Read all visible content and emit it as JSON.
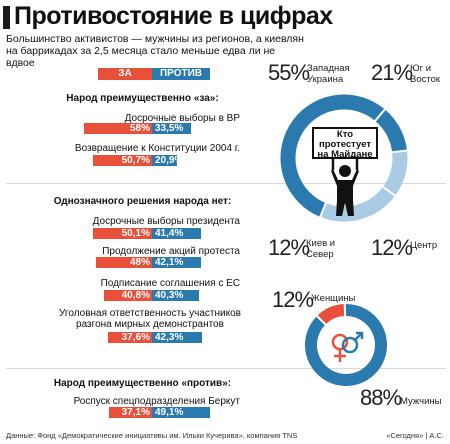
{
  "header": {
    "title": "Противостояние в цифрах",
    "subtitle": "Большинство активистов — мужчины из регионов, а киевлян на баррикадах за 2,5 месяца стало меньше едва ли не вдвое"
  },
  "legend": {
    "za": "ЗА",
    "protiv": "ПРОТИВ"
  },
  "colors": {
    "za": "#e8503a",
    "protiv": "#2a7ab0",
    "donut_dark": "#2a7ab0",
    "donut_light": "#a9cbe3",
    "women": "#e8503a",
    "men": "#2a7ab0"
  },
  "sections": [
    {
      "title": "Народ преимущественно «за»:"
    },
    {
      "title": "Однозначного решения народа нет:"
    },
    {
      "title": "Народ преимущественно «против»:"
    }
  ],
  "chart_data": [
    {
      "type": "bar",
      "series": [
        {
          "name": "ЗА"
        },
        {
          "name": "ПРОТИВ"
        }
      ],
      "rows": [
        {
          "label": "Досрочные выборы в ВР",
          "za": 58,
          "za_label": "58%",
          "protiv": 33.5,
          "protiv_label": "33,5%"
        },
        {
          "label": "Возвращение к Конституции 2004 г.",
          "za": 50.7,
          "za_label": "50,7%",
          "protiv": 20.9,
          "protiv_label": "20,9%"
        },
        {
          "label": "Досрочные выборы президента",
          "za": 50.1,
          "za_label": "50,1%",
          "protiv": 41.4,
          "protiv_label": "41,4%"
        },
        {
          "label": "Продолжение акций протеста",
          "za": 48,
          "za_label": "48%",
          "protiv": 42.1,
          "protiv_label": "42,1%"
        },
        {
          "label": "Подписание соглашения с ЕС",
          "za": 40.8,
          "za_label": "40,8%",
          "protiv": 40.3,
          "protiv_label": "40,3%"
        },
        {
          "label": "Уголовная ответственность участников разгона мирных демонстрантов",
          "za": 37.6,
          "za_label": "37,6%",
          "protiv": 42.3,
          "protiv_label": "42,3%"
        },
        {
          "label": "Роспуск спецподразделения Беркут",
          "za": 37.1,
          "za_label": "37,1%",
          "protiv": 49.1,
          "protiv_label": "49,1%"
        }
      ]
    },
    {
      "type": "pie",
      "title": "Кто протестует на Майдане",
      "slices": [
        {
          "label": "Западная Украина",
          "value": 55,
          "value_label": "55%",
          "color": "#2a7ab0"
        },
        {
          "label": "Центр",
          "value": 12,
          "value_label": "12%",
          "color": "#a9cbe3"
        },
        {
          "label": "Киев и Север",
          "value": 12,
          "value_label": "12%",
          "color": "#2a7ab0"
        },
        {
          "label": "Юг и Восток",
          "value": 21,
          "value_label": "21%",
          "color": "#a9cbe3"
        }
      ]
    },
    {
      "type": "pie",
      "slices": [
        {
          "label": "Женщины",
          "value": 12,
          "value_label": "12%",
          "color": "#e8503a"
        },
        {
          "label": "Мужчины",
          "value": 88,
          "value_label": "88%",
          "color": "#2a7ab0"
        }
      ]
    }
  ],
  "footer": {
    "source": "Данные: Фонд «Демократические инициативы им. Ильки Кучерива», компания TNS",
    "credit": "«Сегодня» | А.С."
  }
}
